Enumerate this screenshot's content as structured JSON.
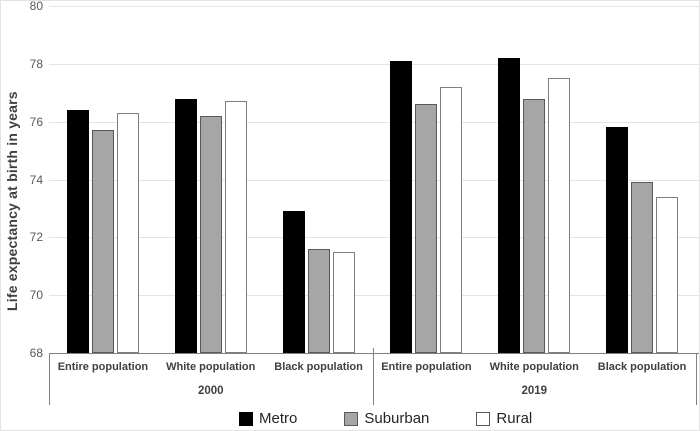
{
  "chart_data": {
    "type": "bar",
    "title": "",
    "xlabel": "",
    "ylabel": "Life expectancy at birth in years",
    "ylim": [
      68,
      80
    ],
    "yticks": [
      68,
      70,
      72,
      74,
      76,
      78,
      80
    ],
    "grid": true,
    "legend_position": "bottom",
    "group_labels": [
      "2000",
      "2019"
    ],
    "categories": [
      "Entire population",
      "White population",
      "Black population",
      "Entire population",
      "White population",
      "Black population"
    ],
    "series": [
      {
        "name": "Metro",
        "color": "#000000",
        "values": [
          76.4,
          76.8,
          72.9,
          78.1,
          78.2,
          75.8
        ]
      },
      {
        "name": "Suburban",
        "color": "#a6a6a6",
        "values": [
          75.7,
          76.2,
          71.6,
          76.6,
          76.8,
          73.9
        ]
      },
      {
        "name": "Rural",
        "color": "#ffffff",
        "values": [
          76.3,
          76.7,
          71.5,
          77.2,
          77.5,
          73.4
        ]
      }
    ]
  },
  "colors": {
    "axis_line": "#808080",
    "gridline": "#e4e4e4",
    "tick_text": "#595959",
    "label_text": "#404040",
    "legend_text": "#262626"
  }
}
